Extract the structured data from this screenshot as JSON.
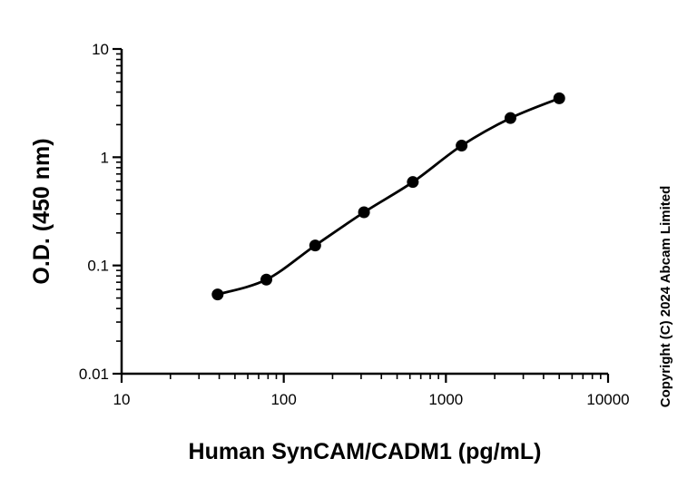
{
  "chart_data": {
    "type": "scatter",
    "x_scale": "log",
    "y_scale": "log",
    "xlabel": "Human SynCAM/CADM1 (pg/mL)",
    "ylabel": "O.D. (450 nm)",
    "xlim": [
      10,
      10000
    ],
    "ylim": [
      0.01,
      10
    ],
    "x_ticks": [
      "10",
      "100",
      "1000",
      "10000"
    ],
    "y_ticks": [
      "0.01",
      "0.1",
      "1",
      "10"
    ],
    "grid": false,
    "legend": "none",
    "fit_curve": true,
    "series": [
      {
        "x": [
          39.1,
          78.1,
          156.3,
          312.5,
          625,
          1250,
          2500,
          5000
        ],
        "y": [
          0.054,
          0.074,
          0.153,
          0.31,
          0.59,
          1.28,
          2.3,
          3.5
        ]
      }
    ],
    "annotations": [
      "Copyright (C) 2024 Abcam Limited"
    ],
    "colors": {
      "marker": "#000000",
      "line": "#000000"
    }
  }
}
